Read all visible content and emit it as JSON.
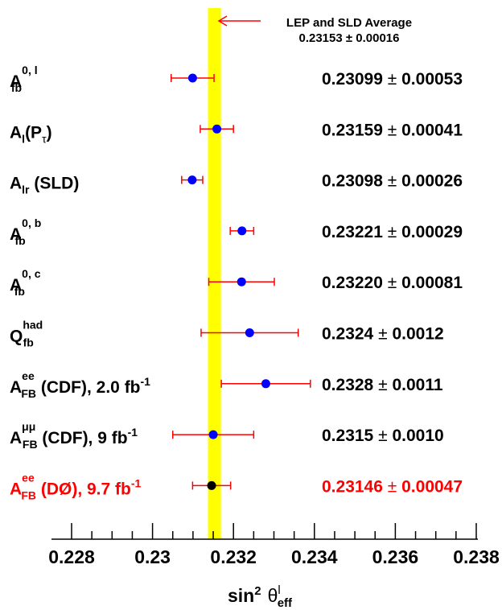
{
  "chart_data": {
    "type": "scatter",
    "subtype": "horizontal error-bar (forest) plot",
    "xlabel": {
      "main": "sin",
      "sup": "2",
      "theta": "θ",
      "theta_sup": "l",
      "theta_sub": "eff"
    },
    "xlim": [
      0.228,
      0.238
    ],
    "x_ticks": [
      "0.228",
      "0.23",
      "0.232",
      "0.234",
      "0.236",
      "0.238"
    ],
    "x_tick_values": [
      0.228,
      0.23,
      0.232,
      0.234,
      0.236,
      0.238
    ],
    "grid": false,
    "band": {
      "label_line1": "LEP and SLD Average",
      "label_line2": "0.23153 ± 0.00016",
      "center": 0.23153,
      "error": 0.00016,
      "color": "#ffff00",
      "arrow_color": "#ff0000"
    },
    "colors": {
      "marker": "#0000ff",
      "errorbar": "#ff0000",
      "text": "#000000",
      "highlight": "#ff0000",
      "highlight_marker": "#000000"
    },
    "measurements": [
      {
        "main": "A",
        "sub": "fb",
        "sup": "0, l",
        "tail": "",
        "tail_sup": "",
        "value": 0.23099,
        "error": 0.00053,
        "value_text": "0.23099",
        "error_text": "0.00053",
        "pm": "±",
        "highlight": false
      },
      {
        "main": "A",
        "sub": "l",
        "sup": "",
        "tail": "(P",
        "tail_sub": "τ",
        "tail_end": ")",
        "value": 0.23159,
        "error": 0.00041,
        "value_text": "0.23159",
        "error_text": "0.00041",
        "pm": "±",
        "highlight": false
      },
      {
        "main": "A",
        "sub": "lr",
        "sup": "",
        "tail": " (SLD)",
        "value": 0.23098,
        "error": 0.00026,
        "value_text": "0.23098",
        "error_text": "0.00026",
        "pm": "±",
        "highlight": false
      },
      {
        "main": "A",
        "sub": "fb",
        "sup": "0, b",
        "tail": "",
        "value": 0.23221,
        "error": 0.00029,
        "value_text": "0.23221",
        "error_text": "0.00029",
        "pm": "±",
        "highlight": false
      },
      {
        "main": "A",
        "sub": "fb",
        "sup": "0, c",
        "tail": "",
        "value": 0.2322,
        "error": 0.00081,
        "value_text": "0.23220",
        "error_text": "0.00081",
        "pm": "±",
        "highlight": false
      },
      {
        "main": "Q",
        "sub": "fb",
        "sup": "had",
        "tail": "",
        "value": 0.2324,
        "error": 0.0012,
        "value_text": "0.2324",
        "error_text": "0.0012",
        "pm": "±",
        "highlight": false
      },
      {
        "main": "A",
        "sub": "FB",
        "sup": "ee",
        "tail": " (CDF), 2.0 fb",
        "tail_sup": "-1",
        "value": 0.2328,
        "error": 0.0011,
        "value_text": "0.2328",
        "error_text": "0.0011",
        "pm": "±",
        "highlight": false
      },
      {
        "main": "A",
        "sub": "FB",
        "sup": "μμ",
        "tail": " (CDF), 9 fb",
        "tail_sup": "-1",
        "value": 0.2315,
        "error": 0.001,
        "value_text": "0.2315",
        "error_text": "0.0010",
        "pm": "±",
        "highlight": false
      },
      {
        "main": "A",
        "sub": "FB",
        "sup": "ee",
        "tail": " (DØ), 9.7 fb",
        "tail_sup": "-1",
        "value": 0.23146,
        "error": 0.00047,
        "value_text": "0.23146",
        "error_text": "0.00047",
        "pm": "±",
        "highlight": true
      }
    ]
  }
}
